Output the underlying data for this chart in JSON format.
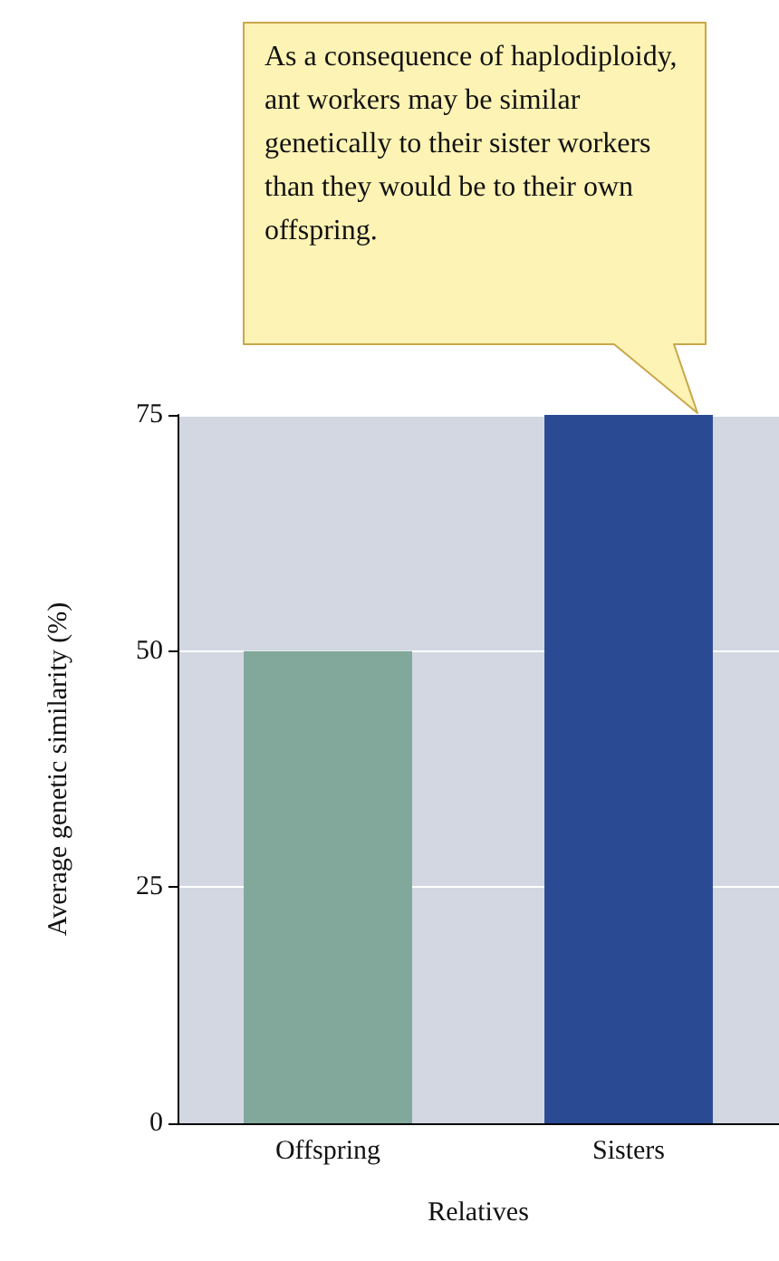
{
  "chart_data": {
    "type": "bar",
    "xlabel": "Relatives",
    "ylabel": "Average genetic similarity (%)",
    "categories": [
      "Offspring",
      "Sisters"
    ],
    "values": [
      50,
      75
    ],
    "colors": [
      "#82a89c",
      "#2a4a94"
    ],
    "ylim": [
      0,
      75
    ],
    "yticks": [
      0,
      25,
      50,
      75
    ],
    "grid": "y",
    "annotations": [
      "As a consequence of haplodiploidy, ant workers may be similar genetically to their sister workers than they would be to their own offspring."
    ]
  }
}
